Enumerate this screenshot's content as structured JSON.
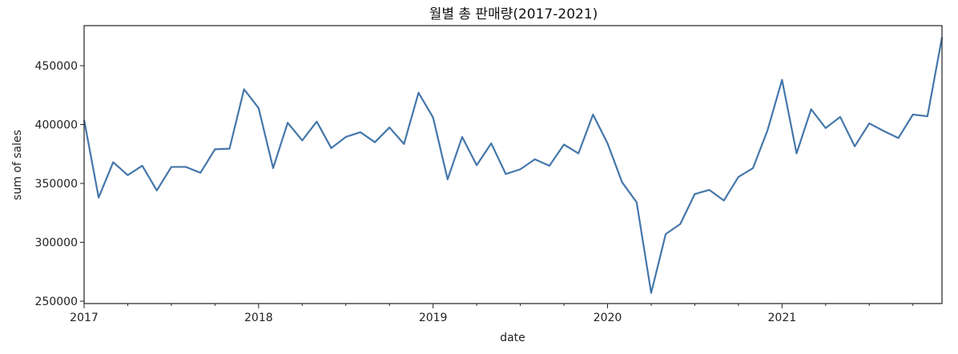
{
  "chart_data": {
    "type": "line",
    "title": "월별 총 판매량(2017-2021)",
    "xlabel": "date",
    "ylabel": "sum of sales",
    "xlim": [
      "2017-01",
      "2021-12"
    ],
    "ylim": [
      248000,
      484000
    ],
    "grid": false,
    "x_ticks": [
      {
        "value": "2017-01",
        "label": "2017"
      },
      {
        "value": "2018-01",
        "label": "2018"
      },
      {
        "value": "2019-01",
        "label": "2019"
      },
      {
        "value": "2020-01",
        "label": "2020"
      },
      {
        "value": "2021-01",
        "label": "2021"
      }
    ],
    "y_ticks": [
      250000,
      300000,
      350000,
      400000,
      450000
    ],
    "y_tick_labels": [
      "250000",
      "300000",
      "350000",
      "400000",
      "450000"
    ],
    "series": [
      {
        "color": "#4477aa",
        "x": [
          "2017-01",
          "2017-02",
          "2017-03",
          "2017-04",
          "2017-05",
          "2017-06",
          "2017-07",
          "2017-08",
          "2017-09",
          "2017-10",
          "2017-11",
          "2017-12",
          "2018-01",
          "2018-02",
          "2018-03",
          "2018-04",
          "2018-05",
          "2018-06",
          "2018-07",
          "2018-08",
          "2018-09",
          "2018-10",
          "2018-11",
          "2018-12",
          "2019-01",
          "2019-02",
          "2019-03",
          "2019-04",
          "2019-05",
          "2019-06",
          "2019-07",
          "2019-08",
          "2019-09",
          "2019-10",
          "2019-11",
          "2019-12",
          "2020-01",
          "2020-02",
          "2020-03",
          "2020-04",
          "2020-05",
          "2020-06",
          "2020-07",
          "2020-08",
          "2020-09",
          "2020-10",
          "2020-11",
          "2020-12",
          "2021-01",
          "2021-02",
          "2021-03",
          "2021-04",
          "2021-05",
          "2021-06",
          "2021-07",
          "2021-08",
          "2021-09",
          "2021-10",
          "2021-11",
          "2021-12"
        ],
        "values": [
          404000,
          338000,
          368000,
          357000,
          365000,
          344000,
          364000,
          364000,
          359000,
          379000,
          379500,
          430000,
          414000,
          363000,
          401500,
          386500,
          402500,
          380000,
          389500,
          393500,
          385000,
          397500,
          383500,
          427000,
          406000,
          353500,
          389500,
          365500,
          384000,
          358000,
          362000,
          370500,
          365000,
          383000,
          375500,
          408500,
          384000,
          351000,
          334000,
          257000,
          307000,
          315500,
          341000,
          344500,
          335500,
          355500,
          363000,
          395000,
          438000,
          375500,
          413000,
          397000,
          406500,
          381500,
          401000,
          394500,
          388500,
          408500,
          407000,
          474000
        ]
      }
    ]
  }
}
